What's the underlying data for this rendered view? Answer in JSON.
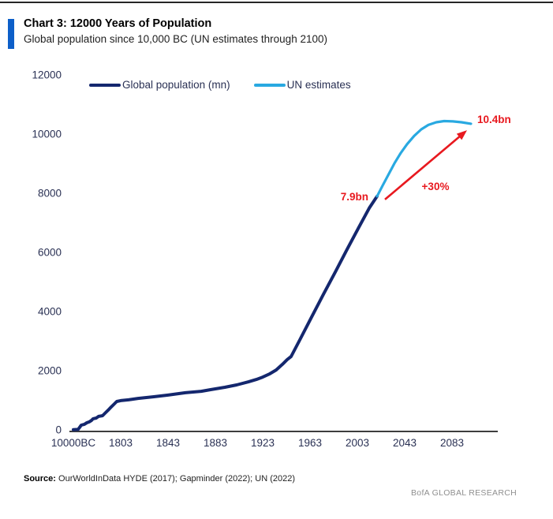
{
  "page": {
    "title": "Chart 3: 12000 Years of Population",
    "subtitle": "Global population since 10,000 BC (UN estimates through 2100)",
    "source_label": "Source:",
    "source_text": "OurWorldInData HYDE (2017);  Gapminder (2022);  UN (2022)",
    "watermark": "BofA GLOBAL RESEARCH",
    "accent_color": "#0d5fc9"
  },
  "legend": {
    "items": [
      {
        "label": "Global population (mn)",
        "color": "#14276e"
      },
      {
        "label": "UN estimates",
        "color": "#29a9e1"
      }
    ]
  },
  "chart_data": {
    "type": "line",
    "title": "12000 Years of Population",
    "xlabel": "",
    "ylabel": "Global population (mn)",
    "ylim": [
      0,
      12000
    ],
    "y_ticks": [
      0,
      2000,
      4000,
      6000,
      8000,
      10000,
      12000
    ],
    "x_ticks": [
      "10000BC",
      "1803",
      "1843",
      "1883",
      "1923",
      "1963",
      "2003",
      "2043",
      "2083"
    ],
    "x_axis_note": "Nonlinear axis: 10000BC tick followed by 40-year steps (60px per tick); series x values are px offsets from the 10000BC tick",
    "grid": false,
    "legend_position": "top",
    "series": [
      {
        "name": "Global population (mn)",
        "color": "#14276e",
        "points": [
          [
            0,
            5
          ],
          [
            6,
            15
          ],
          [
            10,
            160
          ],
          [
            14,
            190
          ],
          [
            17,
            240
          ],
          [
            20,
            270
          ],
          [
            23,
            320
          ],
          [
            25,
            375
          ],
          [
            29,
            400
          ],
          [
            32,
            455
          ],
          [
            37,
            480
          ],
          [
            40,
            560
          ],
          [
            44,
            665
          ],
          [
            48,
            775
          ],
          [
            52,
            880
          ],
          [
            55,
            960
          ],
          [
            60,
            990
          ],
          [
            70,
            1015
          ],
          [
            82,
            1065
          ],
          [
            102,
            1120
          ],
          [
            120,
            1175
          ],
          [
            142,
            1255
          ],
          [
            162,
            1305
          ],
          [
            174,
            1360
          ],
          [
            192,
            1440
          ],
          [
            207,
            1520
          ],
          [
            222,
            1625
          ],
          [
            232,
            1705
          ],
          [
            240,
            1785
          ],
          [
            249,
            1895
          ],
          [
            257,
            2025
          ],
          [
            265,
            2215
          ],
          [
            271,
            2375
          ],
          [
            276,
            2480
          ],
          [
            287,
            3040
          ],
          [
            302,
            3815
          ],
          [
            317,
            4585
          ],
          [
            332,
            5335
          ],
          [
            347,
            6105
          ],
          [
            362,
            6855
          ],
          [
            375,
            7495
          ],
          [
            385,
            7900
          ]
        ]
      },
      {
        "name": "UN estimates",
        "color": "#29a9e1",
        "points": [
          [
            385,
            7900
          ],
          [
            392,
            8260
          ],
          [
            399,
            8610
          ],
          [
            407,
            9010
          ],
          [
            415,
            9360
          ],
          [
            423,
            9660
          ],
          [
            432,
            9940
          ],
          [
            441,
            10160
          ],
          [
            450,
            10310
          ],
          [
            460,
            10400
          ],
          [
            470,
            10440
          ],
          [
            481,
            10430
          ],
          [
            492,
            10400
          ],
          [
            504,
            10350
          ]
        ]
      }
    ],
    "annotations": [
      {
        "text": "7.9bn",
        "x": 374,
        "v": 7760,
        "anchor": "end",
        "color": "#e8191f"
      },
      {
        "text": "+30%",
        "x": 459,
        "v": 8105,
        "anchor": "middle",
        "color": "#e8191f"
      },
      {
        "text": "10.4bn",
        "x": 512,
        "v": 10375,
        "anchor": "start",
        "color": "#e8191f"
      }
    ],
    "arrow": {
      "from": [
        395,
        7790
      ],
      "to": [
        499,
        10130
      ],
      "color": "#e8191f"
    }
  }
}
